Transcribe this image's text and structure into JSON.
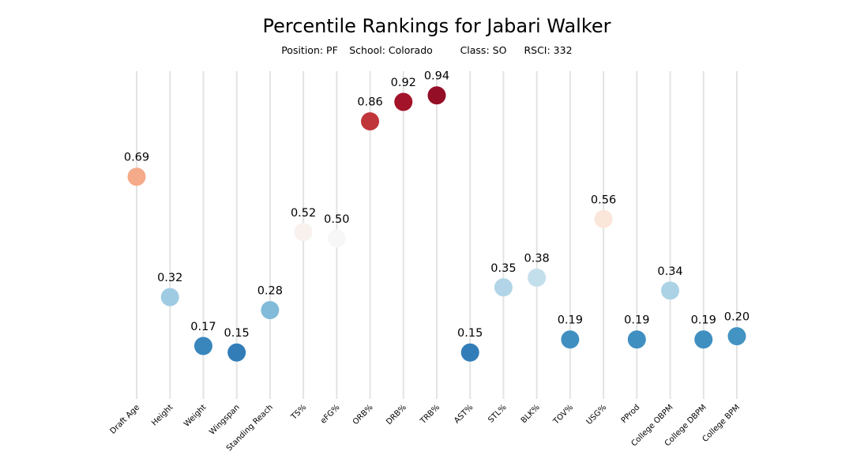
{
  "chart_data": {
    "type": "scatter",
    "title": "Percentile Rankings for Jabari Walker",
    "subtitle": {
      "position": "Position: PF",
      "school": "School: Colorado",
      "class": "Class: SO",
      "rsci": "RSCI: 332"
    },
    "categories": [
      "Draft Age",
      "Height",
      "Weight",
      "Wingspan",
      "Standing Reach",
      "TS%",
      "eFG%",
      "ORB%",
      "DRB%",
      "TRB%",
      "AST%",
      "STL%",
      "BLK%",
      "TOV%",
      "USG%",
      "PProd",
      "College OBPM",
      "College DBPM",
      "College BPM"
    ],
    "values": [
      0.69,
      0.32,
      0.17,
      0.15,
      0.28,
      0.52,
      0.5,
      0.86,
      0.92,
      0.94,
      0.15,
      0.35,
      0.38,
      0.19,
      0.56,
      0.19,
      0.34,
      0.19,
      0.2
    ],
    "labels": [
      "0.69",
      "0.32",
      "0.17",
      "0.15",
      "0.28",
      "0.52",
      "0.50",
      "0.86",
      "0.92",
      "0.94",
      "0.15",
      "0.35",
      "0.38",
      "0.19",
      "0.56",
      "0.19",
      "0.34",
      "0.19",
      "0.20"
    ],
    "ylim": [
      0,
      1
    ],
    "colormap": "RdBu_r",
    "grid": "vertical"
  }
}
